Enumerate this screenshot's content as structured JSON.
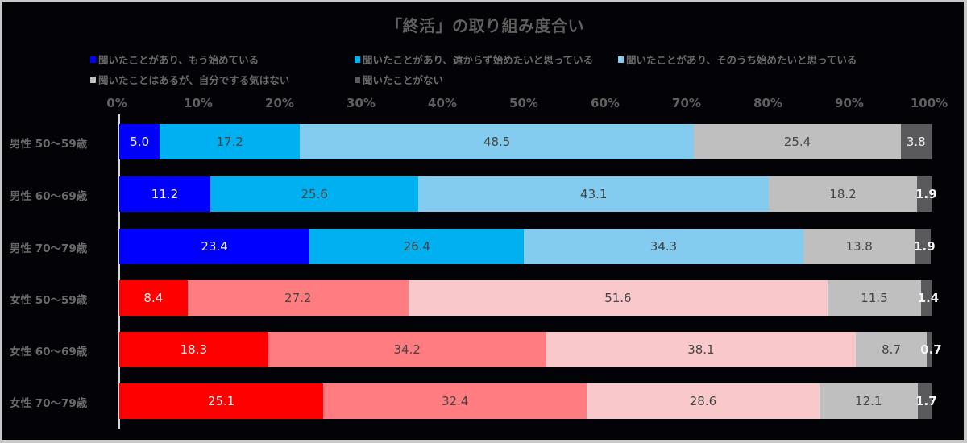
{
  "chart_data": {
    "type": "bar",
    "orientation": "horizontal",
    "stacked": true,
    "title": "「終活」の取り組み度合い",
    "xlabel": "",
    "ylabel": "",
    "xlim": [
      0,
      100
    ],
    "x_ticks": [
      "0%",
      "10%",
      "20%",
      "30%",
      "40%",
      "50%",
      "60%",
      "70%",
      "80%",
      "90%",
      "100%"
    ],
    "grid": false,
    "legend_position": "top",
    "categories": [
      "男性 50～59歳",
      "男性 60～69歳",
      "男性 70～79歳",
      "女性 50～59歳",
      "女性 60～69歳",
      "女性 70～79歳"
    ],
    "series": [
      {
        "name": "聞いたことがあり、もう始めている",
        "values": [
          5.0,
          11.2,
          23.4,
          8.4,
          18.3,
          25.1
        ]
      },
      {
        "name": "聞いたことがあり、遠からず始めたいと思っている",
        "values": [
          17.2,
          25.6,
          26.4,
          27.2,
          34.2,
          32.4
        ]
      },
      {
        "name": "聞いたことがあり、そのうち始めたいと思っている",
        "values": [
          48.5,
          43.1,
          34.3,
          51.6,
          38.1,
          28.6
        ]
      },
      {
        "name": "聞いたことはあるが、自分でする気はない",
        "values": [
          25.4,
          18.2,
          13.8,
          11.5,
          8.7,
          12.1
        ]
      },
      {
        "name": "聞いたことがない",
        "values": [
          3.8,
          1.9,
          1.9,
          1.4,
          0.7,
          1.7
        ]
      }
    ]
  },
  "title": "「終活」の取り組み度合い",
  "legend": [
    {
      "label": "聞いたことがあり、もう始めている",
      "color": "#0000ff"
    },
    {
      "label": "聞いたことがあり、遠からず始めたいと思っている",
      "color": "#00b0f0"
    },
    {
      "label": "聞いたことがあり、そのうち始めたいと思っている",
      "color": "#83cbef"
    },
    {
      "label": "聞いたことはあるが、自分でする気はない",
      "color": "#c0bfc0"
    },
    {
      "label": "聞いたことがない",
      "color": "#5a5a5c"
    }
  ],
  "axis": {
    "ticks": [
      "0%",
      "10%",
      "20%",
      "30%",
      "40%",
      "50%",
      "60%",
      "70%",
      "80%",
      "90%",
      "100%"
    ]
  },
  "rows": [
    {
      "label": "男性 50～59歳",
      "values": [
        "5.0",
        "17.2",
        "48.5",
        "25.4",
        "3.8"
      ],
      "widths": [
        5.0,
        17.2,
        48.5,
        25.4,
        3.8
      ],
      "palette": "male"
    },
    {
      "label": "男性 60～69歳",
      "values": [
        "11.2",
        "25.6",
        "43.1",
        "18.2",
        "1.9"
      ],
      "widths": [
        11.2,
        25.6,
        43.1,
        18.2,
        1.9
      ],
      "palette": "male"
    },
    {
      "label": "男性 70～79歳",
      "values": [
        "23.4",
        "26.4",
        "34.3",
        "13.8",
        "1.9"
      ],
      "widths": [
        23.4,
        26.4,
        34.3,
        13.8,
        1.9
      ],
      "palette": "male"
    },
    {
      "label": "女性 50～59歳",
      "values": [
        "8.4",
        "27.2",
        "51.6",
        "11.5",
        "1.4"
      ],
      "widths": [
        8.4,
        27.2,
        51.6,
        11.5,
        1.4
      ],
      "palette": "female"
    },
    {
      "label": "女性 60～69歳",
      "values": [
        "18.3",
        "34.2",
        "38.1",
        "8.7",
        "0.7"
      ],
      "widths": [
        18.3,
        34.2,
        38.1,
        8.7,
        0.7
      ],
      "palette": "female"
    },
    {
      "label": "女性 70～79歳",
      "values": [
        "25.1",
        "32.4",
        "28.6",
        "12.1",
        "1.7"
      ],
      "widths": [
        25.1,
        32.4,
        28.6,
        12.1,
        1.7
      ],
      "palette": "female"
    }
  ],
  "colors": {
    "male": [
      "#0000ff",
      "#00b0f0",
      "#83cbef",
      "#c0bfc0",
      "#5a5a5c"
    ],
    "female": [
      "#ff0000",
      "#ff7c80",
      "#f8c8cb",
      "#c0bfc0",
      "#5a5a5c"
    ],
    "background": "#030206",
    "frame": "#c8c8c8"
  }
}
